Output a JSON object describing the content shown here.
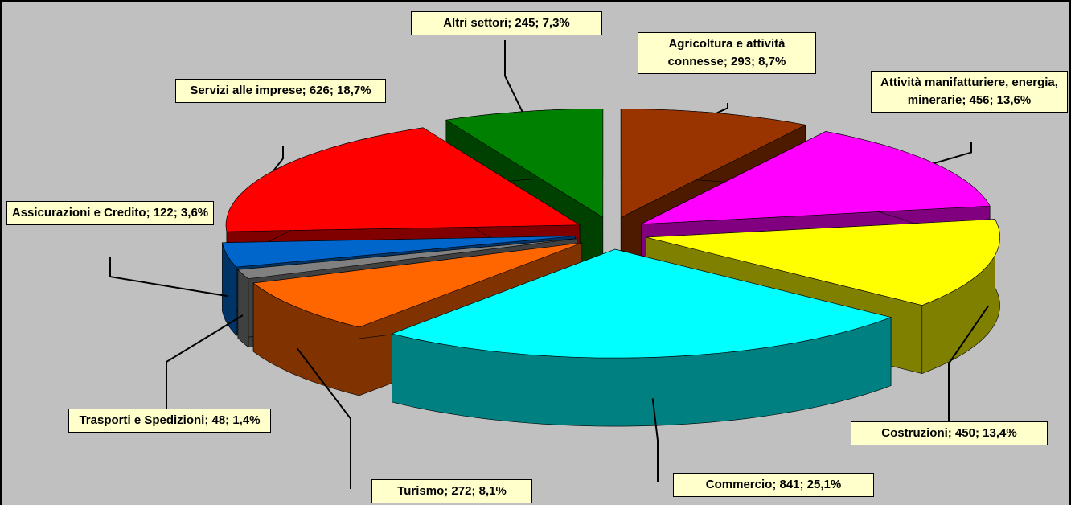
{
  "chart_data": {
    "type": "pie3d",
    "categories": [
      "Agricoltura e attività connesse",
      "Attività manifatturiere, energia, minerarie",
      "Costruzioni",
      "Commercio",
      "Turismo",
      "Trasporti e Spedizioni",
      "Assicurazioni e Credito",
      "Servizi alle imprese",
      "Altri settori"
    ],
    "values": [
      293,
      456,
      450,
      841,
      272,
      48,
      122,
      626,
      245
    ],
    "value_labels": [
      "Agricoltura e attività connesse; 293; 8,7%",
      "Attività manifatturiere, energia, minerarie; 456; 13,6%",
      "Costruzioni; 450; 13,4%",
      "Commercio; 841; 25,1%",
      "Turismo; 272; 8,1%",
      "Trasporti e Spedizioni; 48; 1,4%",
      "Assicurazioni e Credito; 122; 3,6%",
      "Servizi alle imprese; 626; 18,7%",
      "Altri settori; 245; 7,3%"
    ],
    "colors": [
      "#993300",
      "#ff00ff",
      "#ffff00",
      "#00ffff",
      "#ff6600",
      "#808080",
      "#0066cc",
      "#ff0000",
      "#008000"
    ]
  }
}
